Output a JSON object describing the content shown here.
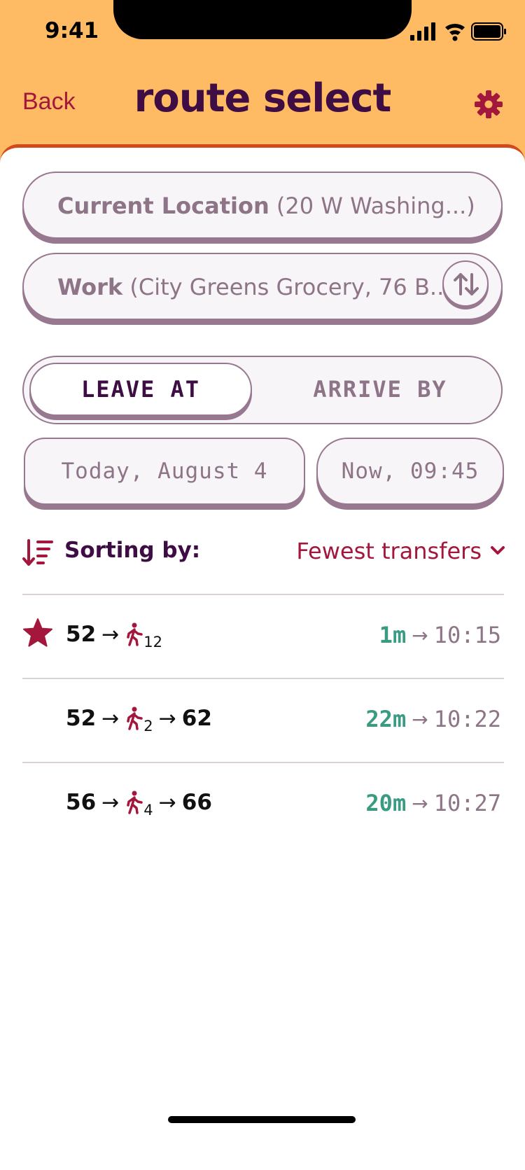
{
  "status_bar": {
    "time": "9:41"
  },
  "header": {
    "back_label": "Back",
    "title": "route select",
    "settings_icon": "gear-icon"
  },
  "origin": {
    "name": "Current Location",
    "detail": "(20 W Washing...)"
  },
  "destination": {
    "name": "Work",
    "detail": "(City Greens Grocery, 76 B...)"
  },
  "time_mode": {
    "active": "LEAVE AT",
    "inactive": "ARRIVE BY"
  },
  "date": {
    "value": "Today, August 4"
  },
  "time": {
    "value": "Now, 09:45"
  },
  "sort": {
    "label": "Sorting by:",
    "value": "Fewest transfers"
  },
  "routes": [
    {
      "starred": true,
      "leg1": "52",
      "walk": "12",
      "leg2": "",
      "duration": "1m",
      "arrival": "10:15"
    },
    {
      "starred": false,
      "leg1": "52",
      "walk": "2",
      "leg2": "62",
      "duration": "22m",
      "arrival": "10:22"
    },
    {
      "starred": false,
      "leg1": "56",
      "walk": "4",
      "leg2": "66",
      "duration": "20m",
      "arrival": "10:27"
    }
  ],
  "colors": {
    "header_bg": "#ffbb63",
    "title": "#3d0d43",
    "accent": "#a3173d",
    "duration": "#3a9b82",
    "muted": "#8e7487",
    "sheet_border": "#d24a1b"
  }
}
